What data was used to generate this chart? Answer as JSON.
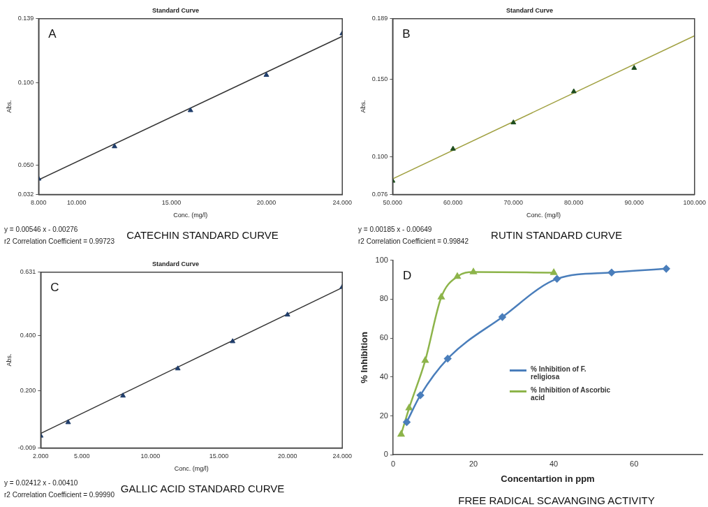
{
  "chart_data": [
    {
      "type": "scatter",
      "title": "Standard Curve",
      "xlabel": "Conc. (mg/l)",
      "ylabel": "Abs.",
      "xlim": [
        8,
        24
      ],
      "xticks": [
        {
          "value": 8,
          "label": "8.000"
        },
        {
          "value": 10,
          "label": "10.000"
        },
        {
          "value": 15,
          "label": "15.000"
        },
        {
          "value": 20,
          "label": "20.000"
        },
        {
          "value": 24,
          "label": "24.000"
        }
      ],
      "ylim": [
        0.032,
        0.139
      ],
      "yticks": [
        0.032,
        {
          "value": 0.05,
          "label": "0.050"
        },
        {
          "value": 0.1,
          "label": "0.100"
        },
        0.139
      ],
      "series": [
        {
          "color": "#1f3d6b",
          "marker": "triangle",
          "x": [
            8,
            12,
            16,
            20,
            24
          ],
          "values": [
            0.0415,
            0.0612,
            0.0832,
            0.1047,
            0.13
          ]
        },
        {
          "type": "line",
          "color": "#333333",
          "x": [
            8,
            24
          ],
          "values": [
            0.0409,
            0.1283
          ]
        }
      ],
      "annotations": [
        "A",
        "y = 0.00546 x - 0.00276",
        "r2 Correlation Coefficient = 0.99723",
        "CATECHIN STANDARD CURVE"
      ]
    },
    {
      "type": "scatter",
      "title": "Standard Curve",
      "xlabel": "Conc. (mg/l)",
      "ylabel": "Abs.",
      "xlim": [
        50,
        100
      ],
      "xticks": [
        {
          "value": 50,
          "label": "50.000"
        },
        {
          "value": 60,
          "label": "60.000"
        },
        {
          "value": 70,
          "label": "70.000"
        },
        {
          "value": 80,
          "label": "80.000"
        },
        {
          "value": 90,
          "label": "90.000"
        },
        {
          "value": 100,
          "label": "100.000"
        }
      ],
      "ylim": [
        0.076,
        0.189
      ],
      "yticks": [
        0.076,
        {
          "value": 0.1,
          "label": "0.100"
        },
        {
          "value": 0.15,
          "label": "0.150"
        },
        0.189
      ],
      "series": [
        {
          "color": "#1e4d1e",
          "marker": "triangle",
          "x": [
            50,
            60,
            70,
            80,
            90
          ],
          "values": [
            0.0847,
            0.1053,
            0.1222,
            0.1422,
            0.1573
          ]
        },
        {
          "type": "line",
          "color": "#a0a040",
          "x": [
            50,
            100
          ],
          "values": [
            0.086,
            0.178
          ]
        }
      ],
      "annotations": [
        "B",
        "y = 0.00185 x - 0.00649",
        "r2 Correlation Coefficient = 0.99842",
        "RUTIN STANDARD CURVE"
      ]
    },
    {
      "type": "scatter",
      "title": "Standard Curve",
      "xlabel": "Conc. (mg/l)",
      "ylabel": "Abs.",
      "xlim": [
        2,
        24
      ],
      "xticks": [
        {
          "value": 2,
          "label": "2.000"
        },
        {
          "value": 5,
          "label": "5.000"
        },
        {
          "value": 10,
          "label": "10.000"
        },
        {
          "value": 15,
          "label": "15.000"
        },
        {
          "value": 20,
          "label": "20.000"
        },
        {
          "value": 24,
          "label": "24.000"
        }
      ],
      "ylim": [
        -0.009,
        0.631
      ],
      "yticks": [
        -0.009,
        {
          "value": 0.2,
          "label": "0.200"
        },
        {
          "value": 0.4,
          "label": "0.400"
        },
        0.631
      ],
      "series": [
        {
          "color": "#1f3d6b",
          "marker": "triangle",
          "x": [
            2,
            4,
            8,
            12,
            16,
            20,
            24
          ],
          "values": [
            0.035,
            0.084,
            0.181,
            0.28,
            0.379,
            0.476,
            0.577
          ]
        },
        {
          "type": "line",
          "color": "#333333",
          "x": [
            2,
            24
          ],
          "values": [
            0.044,
            0.575
          ]
        }
      ],
      "annotations": [
        "C",
        "y = 0.02412 x - 0.00410",
        "r2 Correlation Coefficient = 0.99990",
        "GALLIC ACID STANDARD CURVE"
      ]
    },
    {
      "type": "line",
      "xlabel": "Concentartion in ppm",
      "ylabel": "% Inhibition",
      "legend": "center",
      "xlim": [
        0,
        77
      ],
      "xticks": [
        0,
        20,
        40,
        60
      ],
      "ylim": [
        0,
        100
      ],
      "yticks": [
        0,
        20,
        40,
        60,
        80,
        100
      ],
      "series": [
        {
          "name": "% Inhibition of F. religiosa",
          "color": "#4a7ebb",
          "marker": "diamond",
          "x": [
            3.4,
            6.8,
            13.6,
            27.2,
            40.8,
            54.4,
            68
          ],
          "values": [
            16.8,
            30.6,
            49.4,
            70.8,
            90.4,
            93.7,
            95.6
          ]
        },
        {
          "name": "% Inhibition of Ascorbic acid",
          "color": "#8db44a",
          "marker": "triangle",
          "x": [
            2,
            4,
            8,
            12,
            16,
            20,
            40
          ],
          "values": [
            10.5,
            24,
            48.4,
            81,
            91.6,
            93.9,
            93.6
          ]
        }
      ],
      "annotations": [
        "D",
        "FREE RADICAL SCAVANGING ACTIVITY"
      ]
    }
  ]
}
